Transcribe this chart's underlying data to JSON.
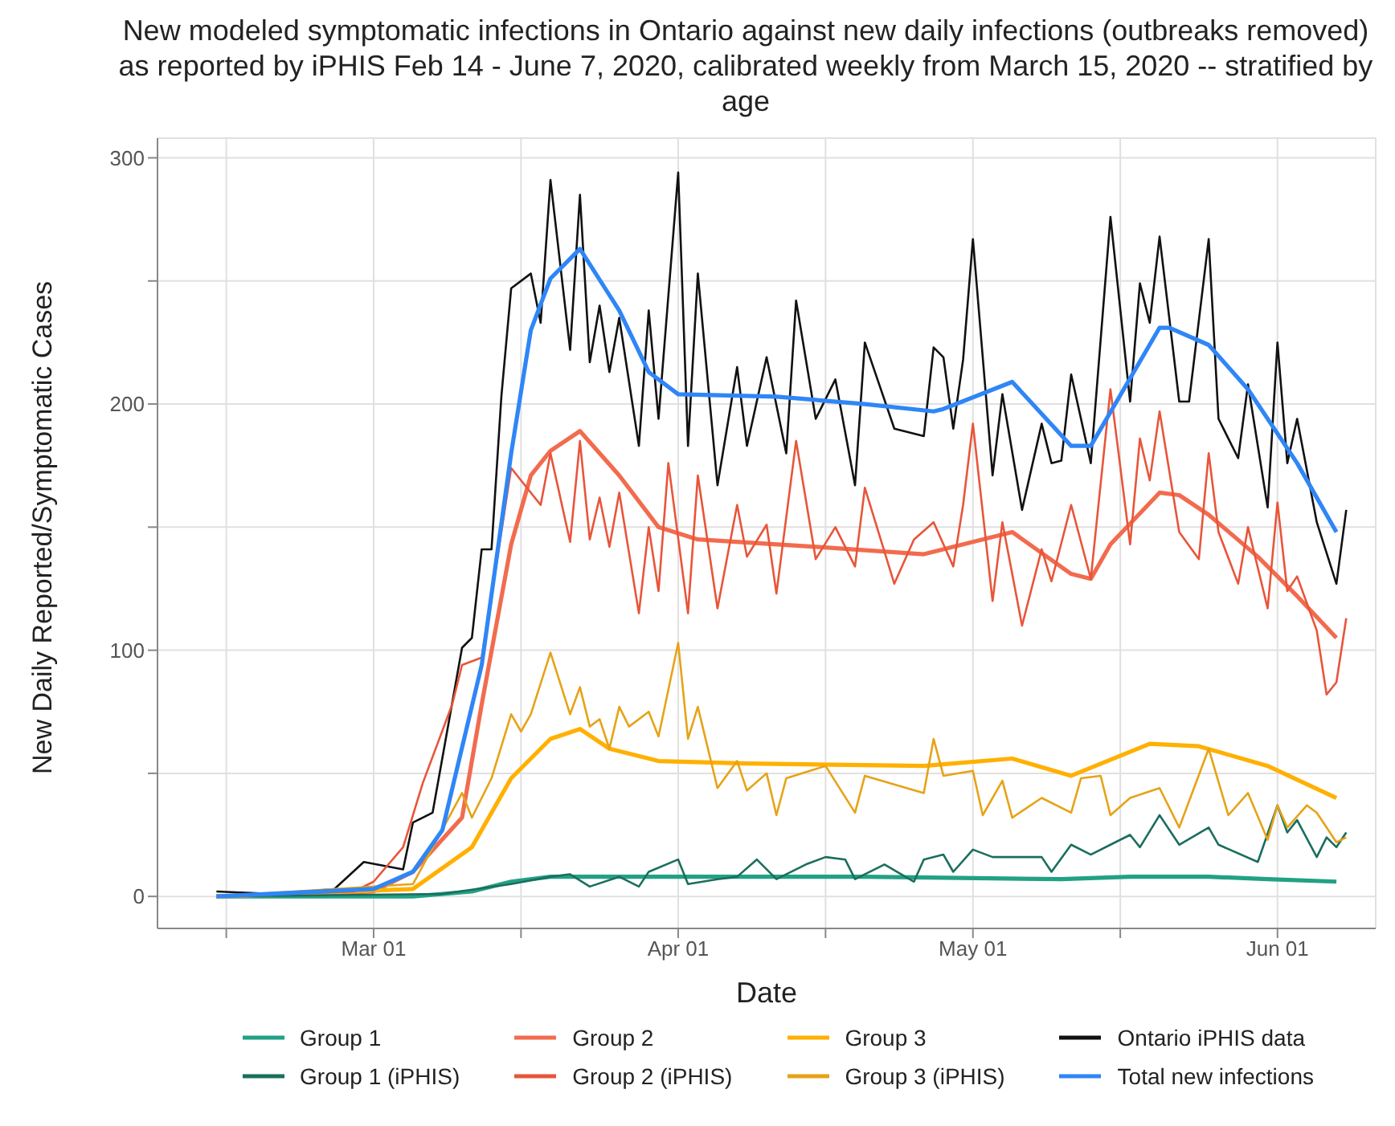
{
  "chart_data": {
    "type": "line",
    "title": "New modeled symptomatic infections in Ontario against new daily infections (outbreaks removed) as reported by iPHIS Feb 14 - June 7, 2020, calibrated weekly from March 15, 2020 -- stratified by age",
    "xlabel": "Date",
    "ylabel": "New Daily Reported/Symptomatic Cases",
    "xlim": [
      "2020-02-08",
      "2020-06-11"
    ],
    "xticks": [
      {
        "value": "2020-02-15",
        "label": null
      },
      {
        "value": "2020-03-01",
        "label": "Mar 01"
      },
      {
        "value": "2020-03-16",
        "label": null
      },
      {
        "value": "2020-04-01",
        "label": "Apr 01"
      },
      {
        "value": "2020-04-16",
        "label": null
      },
      {
        "value": "2020-05-01",
        "label": "May 01"
      },
      {
        "value": "2020-05-16",
        "label": null
      },
      {
        "value": "2020-06-01",
        "label": "Jun 01"
      }
    ],
    "ylim": [
      -13,
      308
    ],
    "yticks": [
      0,
      {
        "value": 50,
        "label": null
      },
      100,
      {
        "value": 150,
        "label": null
      },
      200,
      {
        "value": 250,
        "label": null
      },
      300
    ],
    "grid": true,
    "legend": "bottom",
    "line_style": "solid",
    "series": [
      {
        "name": "Group 1",
        "color": "#22a184",
        "x": [
          "2020-02-14",
          "2020-03-05",
          "2020-03-11",
          "2020-03-15",
          "2020-03-19",
          "2020-04-01",
          "2020-04-20",
          "2020-05-10",
          "2020-05-17",
          "2020-05-25",
          "2020-05-31",
          "2020-06-07"
        ],
        "values": [
          0,
          0,
          2,
          6,
          8,
          8,
          8,
          7,
          8,
          8,
          7,
          6
        ]
      },
      {
        "name": "Group 2",
        "color": "#f26b4e",
        "x": [
          "2020-02-14",
          "2020-03-01",
          "2020-03-05",
          "2020-03-10",
          "2020-03-12",
          "2020-03-15",
          "2020-03-17",
          "2020-03-19",
          "2020-03-22",
          "2020-03-26",
          "2020-03-30",
          "2020-04-03",
          "2020-04-15",
          "2020-04-26",
          "2020-05-05",
          "2020-05-11",
          "2020-05-13",
          "2020-05-15",
          "2020-05-20",
          "2020-05-22",
          "2020-05-25",
          "2020-05-30",
          "2020-06-03",
          "2020-06-07"
        ],
        "values": [
          0,
          2,
          10,
          32,
          78,
          143,
          171,
          181,
          189,
          171,
          150,
          145,
          142,
          139,
          148,
          131,
          129,
          143,
          164,
          163,
          155,
          138,
          122,
          105
        ]
      },
      {
        "name": "Group 3",
        "color": "#ffb000",
        "x": [
          "2020-02-14",
          "2020-03-05",
          "2020-03-11",
          "2020-03-15",
          "2020-03-19",
          "2020-03-22",
          "2020-03-25",
          "2020-03-30",
          "2020-04-08",
          "2020-04-26",
          "2020-05-05",
          "2020-05-11",
          "2020-05-19",
          "2020-05-24",
          "2020-05-31",
          "2020-06-07"
        ],
        "values": [
          0,
          3,
          20,
          48,
          64,
          68,
          60,
          55,
          54,
          53,
          56,
          49,
          62,
          61,
          53,
          40
        ]
      },
      {
        "name": "Ontario iPHIS data",
        "color": "#111111",
        "x": [
          "2020-02-14",
          "2020-02-20",
          "2020-02-26",
          "2020-02-29",
          "2020-03-04",
          "2020-03-05",
          "2020-03-07",
          "2020-03-10",
          "2020-03-11",
          "2020-03-12",
          "2020-03-13",
          "2020-03-14",
          "2020-03-15",
          "2020-03-17",
          "2020-03-18",
          "2020-03-19",
          "2020-03-21",
          "2020-03-22",
          "2020-03-23",
          "2020-03-24",
          "2020-03-25",
          "2020-03-26",
          "2020-03-28",
          "2020-03-29",
          "2020-03-30",
          "2020-04-01",
          "2020-04-02",
          "2020-04-03",
          "2020-04-05",
          "2020-04-07",
          "2020-04-08",
          "2020-04-10",
          "2020-04-12",
          "2020-04-13",
          "2020-04-15",
          "2020-04-17",
          "2020-04-19",
          "2020-04-20",
          "2020-04-23",
          "2020-04-26",
          "2020-04-27",
          "2020-04-28",
          "2020-04-29",
          "2020-04-30",
          "2020-05-01",
          "2020-05-03",
          "2020-05-04",
          "2020-05-06",
          "2020-05-08",
          "2020-05-09",
          "2020-05-10",
          "2020-05-11",
          "2020-05-13",
          "2020-05-15",
          "2020-05-17",
          "2020-05-18",
          "2020-05-19",
          "2020-05-20",
          "2020-05-22",
          "2020-05-23",
          "2020-05-25",
          "2020-05-26",
          "2020-05-28",
          "2020-05-29",
          "2020-05-31",
          "2020-06-01",
          "2020-06-02",
          "2020-06-03",
          "2020-06-05",
          "2020-06-07",
          "2020-06-08"
        ],
        "values": [
          2,
          1,
          3,
          14,
          11,
          30,
          34,
          101,
          105,
          141,
          141,
          203,
          247,
          253,
          233,
          291,
          222,
          285,
          217,
          240,
          213,
          235,
          183,
          238,
          194,
          294,
          183,
          253,
          167,
          215,
          183,
          219,
          180,
          242,
          194,
          210,
          167,
          225,
          190,
          187,
          223,
          219,
          190,
          218,
          267,
          171,
          204,
          157,
          192,
          176,
          177,
          212,
          176,
          276,
          201,
          249,
          233,
          268,
          201,
          201,
          267,
          194,
          178,
          208,
          158,
          225,
          176,
          194,
          152,
          127,
          157
        ]
      },
      {
        "name": "Group 1 (iPHIS)",
        "color": "#1b6e5e",
        "x": [
          "2020-02-14",
          "2020-03-08",
          "2020-03-15",
          "2020-03-19",
          "2020-03-21",
          "2020-03-23",
          "2020-03-26",
          "2020-03-28",
          "2020-03-29",
          "2020-04-01",
          "2020-04-02",
          "2020-04-05",
          "2020-04-07",
          "2020-04-09",
          "2020-04-11",
          "2020-04-14",
          "2020-04-16",
          "2020-04-18",
          "2020-04-19",
          "2020-04-22",
          "2020-04-25",
          "2020-04-26",
          "2020-04-28",
          "2020-04-29",
          "2020-05-01",
          "2020-05-03",
          "2020-05-08",
          "2020-05-09",
          "2020-05-11",
          "2020-05-13",
          "2020-05-15",
          "2020-05-17",
          "2020-05-18",
          "2020-05-20",
          "2020-05-22",
          "2020-05-25",
          "2020-05-26",
          "2020-05-30",
          "2020-06-01",
          "2020-06-02",
          "2020-06-03",
          "2020-06-05",
          "2020-06-06",
          "2020-06-07",
          "2020-06-08"
        ],
        "values": [
          0,
          1,
          5,
          8,
          9,
          4,
          8,
          4,
          10,
          15,
          5,
          7,
          8,
          15,
          7,
          13,
          16,
          15,
          7,
          13,
          6,
          15,
          17,
          10,
          19,
          16,
          16,
          10,
          21,
          17,
          21,
          25,
          20,
          33,
          21,
          28,
          21,
          14,
          37,
          26,
          31,
          16,
          24,
          20,
          26
        ]
      },
      {
        "name": "Group 2 (iPHIS)",
        "color": "#e8553a",
        "x": [
          "2020-02-14",
          "2020-02-28",
          "2020-03-01",
          "2020-03-04",
          "2020-03-06",
          "2020-03-09",
          "2020-03-10",
          "2020-03-12",
          "2020-03-14",
          "2020-03-15",
          "2020-03-18",
          "2020-03-19",
          "2020-03-21",
          "2020-03-22",
          "2020-03-23",
          "2020-03-24",
          "2020-03-25",
          "2020-03-26",
          "2020-03-28",
          "2020-03-29",
          "2020-03-30",
          "2020-03-31",
          "2020-04-02",
          "2020-04-03",
          "2020-04-05",
          "2020-04-07",
          "2020-04-08",
          "2020-04-10",
          "2020-04-11",
          "2020-04-13",
          "2020-04-15",
          "2020-04-17",
          "2020-04-19",
          "2020-04-20",
          "2020-04-23",
          "2020-04-25",
          "2020-04-27",
          "2020-04-29",
          "2020-04-30",
          "2020-05-01",
          "2020-05-03",
          "2020-05-04",
          "2020-05-06",
          "2020-05-08",
          "2020-05-09",
          "2020-05-11",
          "2020-05-13",
          "2020-05-15",
          "2020-05-17",
          "2020-05-18",
          "2020-05-19",
          "2020-05-20",
          "2020-05-22",
          "2020-05-24",
          "2020-05-25",
          "2020-05-26",
          "2020-05-28",
          "2020-05-29",
          "2020-05-31",
          "2020-06-01",
          "2020-06-02",
          "2020-06-03",
          "2020-06-05",
          "2020-06-06",
          "2020-06-07",
          "2020-06-08"
        ],
        "values": [
          0,
          2,
          6,
          20,
          46,
          78,
          94,
          97,
          148,
          174,
          159,
          180,
          144,
          185,
          145,
          162,
          142,
          164,
          115,
          150,
          124,
          176,
          115,
          171,
          117,
          159,
          138,
          151,
          123,
          185,
          137,
          150,
          134,
          166,
          127,
          145,
          152,
          134,
          159,
          192,
          120,
          152,
          110,
          141,
          128,
          159,
          129,
          206,
          143,
          186,
          169,
          197,
          148,
          137,
          180,
          148,
          127,
          150,
          117,
          160,
          124,
          130,
          108,
          82,
          87,
          113
        ]
      },
      {
        "name": "Group 3 (iPHIS)",
        "color": "#e6a317",
        "x": [
          "2020-02-14",
          "2020-03-05",
          "2020-03-10",
          "2020-03-11",
          "2020-03-13",
          "2020-03-15",
          "2020-03-16",
          "2020-03-17",
          "2020-03-19",
          "2020-03-21",
          "2020-03-22",
          "2020-03-23",
          "2020-03-24",
          "2020-03-25",
          "2020-03-26",
          "2020-03-27",
          "2020-03-29",
          "2020-03-30",
          "2020-04-01",
          "2020-04-02",
          "2020-04-03",
          "2020-04-05",
          "2020-04-07",
          "2020-04-08",
          "2020-04-10",
          "2020-04-11",
          "2020-04-12",
          "2020-04-16",
          "2020-04-19",
          "2020-04-20",
          "2020-04-26",
          "2020-04-27",
          "2020-04-28",
          "2020-05-01",
          "2020-05-02",
          "2020-05-04",
          "2020-05-05",
          "2020-05-08",
          "2020-05-11",
          "2020-05-12",
          "2020-05-14",
          "2020-05-15",
          "2020-05-17",
          "2020-05-20",
          "2020-05-22",
          "2020-05-25",
          "2020-05-27",
          "2020-05-29",
          "2020-05-31",
          "2020-06-01",
          "2020-06-02",
          "2020-06-04",
          "2020-06-05",
          "2020-06-07",
          "2020-06-08"
        ],
        "values": [
          0,
          5,
          42,
          32,
          48,
          74,
          67,
          74,
          99,
          74,
          85,
          69,
          72,
          60,
          77,
          69,
          75,
          65,
          103,
          64,
          77,
          44,
          55,
          43,
          50,
          33,
          48,
          53,
          34,
          49,
          42,
          64,
          49,
          51,
          33,
          47,
          32,
          40,
          34,
          48,
          49,
          33,
          40,
          44,
          28,
          60,
          33,
          42,
          23,
          37,
          28,
          37,
          34,
          22,
          24
        ]
      },
      {
        "name": "Total new infections",
        "color": "#2f86f6",
        "x": [
          "2020-02-14",
          "2020-03-01",
          "2020-03-05",
          "2020-03-08",
          "2020-03-12",
          "2020-03-15",
          "2020-03-17",
          "2020-03-19",
          "2020-03-22",
          "2020-03-26",
          "2020-03-29",
          "2020-04-01",
          "2020-04-11",
          "2020-04-20",
          "2020-04-27",
          "2020-04-28",
          "2020-05-05",
          "2020-05-11",
          "2020-05-13",
          "2020-05-20",
          "2020-05-21",
          "2020-05-25",
          "2020-05-29",
          "2020-06-03",
          "2020-06-07"
        ],
        "values": [
          0,
          3,
          10,
          27,
          94,
          180,
          230,
          251,
          263,
          238,
          213,
          204,
          203,
          200,
          197,
          198,
          209,
          183,
          183,
          231,
          231,
          224,
          206,
          176,
          148
        ]
      }
    ]
  }
}
